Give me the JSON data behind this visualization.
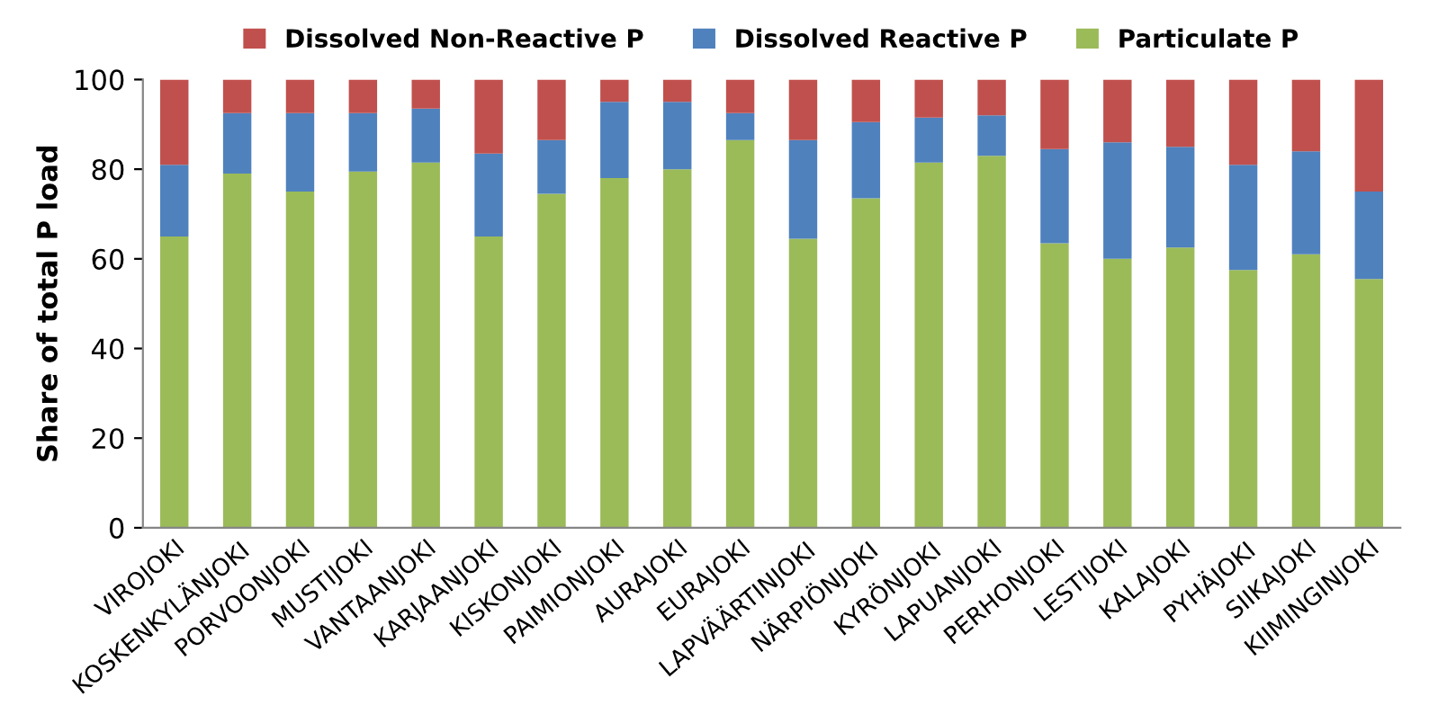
{
  "chart_data": {
    "type": "bar",
    "stacked": true,
    "ylabel": "Share of total P load",
    "categories": [
      "VIROJOKI",
      "KOSKENKYLÄNJOKI",
      "PORVOONJOKI",
      "MUSTIJOKI",
      "VANTAANJOKI",
      "KARJAANJOKI",
      "KISKONJOKI",
      "PAIMIONJOKI",
      "AURAJOKI",
      "EURAJOKI",
      "LAPVÄÄRTINJOKI",
      "NÄRPIÖNJOKI",
      "KYRÖNJOKI",
      "LAPUANJOKI",
      "PERHONJOKI",
      "LESTIJOKI",
      "KALAJOKI",
      "PYHÄJOKI",
      "SIIKAJOKI",
      "KIIMINGINJOKI"
    ],
    "series": [
      {
        "name": "Particulate P",
        "color": "#9bbb59",
        "values": [
          65,
          79,
          75,
          79.5,
          81.5,
          65,
          74.5,
          78,
          80,
          86.5,
          64.5,
          73.5,
          81.5,
          83,
          63.5,
          60,
          62.5,
          57.5,
          61,
          55.5
        ]
      },
      {
        "name": "Dissolved Reactive P",
        "color": "#4f81bd",
        "values": [
          16,
          13.5,
          17.5,
          13,
          12,
          18.5,
          12,
          17,
          15,
          6,
          22,
          17,
          10,
          9,
          21,
          26,
          22.5,
          23.5,
          23,
          19.5
        ]
      },
      {
        "name": "Dissolved Non-Reactive P",
        "color": "#c0504d",
        "values": [
          19,
          7.5,
          7.5,
          7.5,
          6.5,
          16.5,
          13.5,
          5,
          5,
          7.5,
          13.5,
          9.5,
          8.5,
          8,
          15.5,
          14,
          15,
          19,
          16,
          25
        ]
      }
    ],
    "ylim": [
      0,
      100
    ],
    "yticks": [
      0,
      20,
      40,
      60,
      80,
      100
    ],
    "grid": false,
    "legend": "top"
  }
}
